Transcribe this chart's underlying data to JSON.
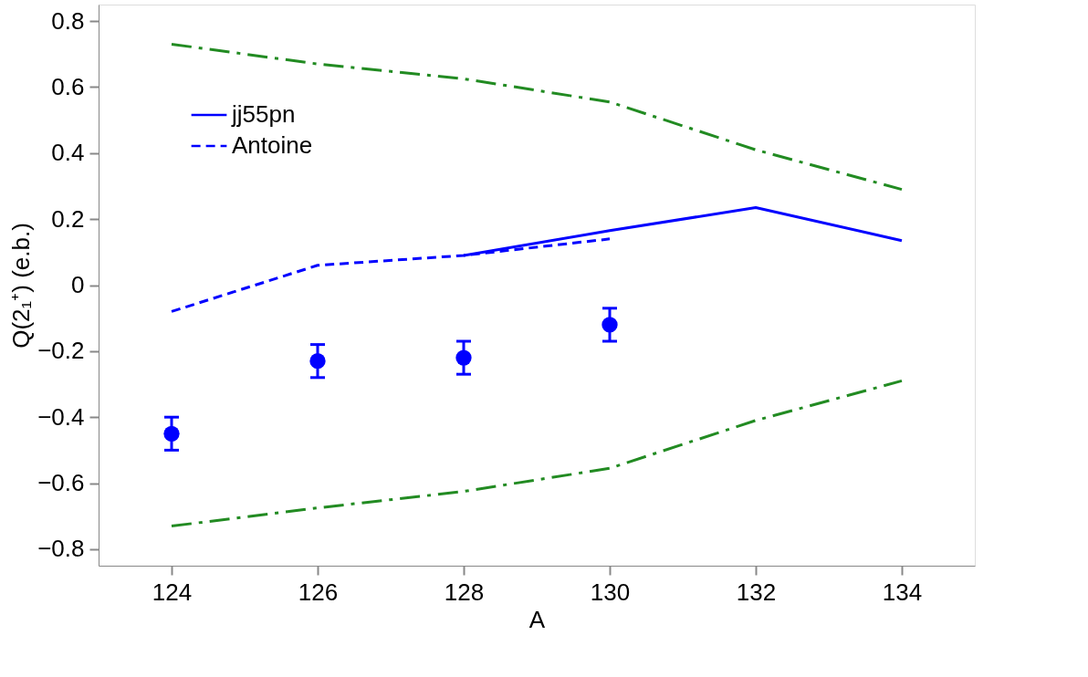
{
  "chart_data": {
    "type": "line",
    "xlabel": "A",
    "ylabel": "Q(2₁⁺) (e.b.)",
    "xlim": [
      123,
      135
    ],
    "xticks": [
      124,
      126,
      128,
      130,
      132,
      134
    ],
    "ylim": [
      -0.85,
      0.85
    ],
    "yticks": [
      -0.8,
      -0.6,
      -0.4,
      -0.2,
      0,
      0.2,
      0.4,
      0.6,
      0.8
    ],
    "grid": false,
    "legend": "top left",
    "series": [
      {
        "color": "#228b22",
        "line_style": "dashdot",
        "x": [
          124,
          126,
          128,
          130,
          132,
          134
        ],
        "values": [
          0.73,
          0.67,
          0.625,
          0.555,
          0.41,
          0.29
        ]
      },
      {
        "color": "#228b22",
        "line_style": "dashdot",
        "x": [
          124,
          126,
          128,
          130,
          132,
          134
        ],
        "values": [
          -0.73,
          -0.675,
          -0.625,
          -0.555,
          -0.41,
          -0.29
        ]
      },
      {
        "name": "jj55pn",
        "color": "#0000ff",
        "line_style": "solid",
        "x": [
          128,
          130,
          132,
          134
        ],
        "values": [
          0.09,
          0.165,
          0.235,
          0.135
        ]
      },
      {
        "name": "Antoine",
        "color": "#0000ff",
        "line_style": "dashed",
        "x": [
          124,
          126,
          128,
          130
        ],
        "values": [
          -0.08,
          0.06,
          0.09,
          0.14
        ]
      },
      {
        "type": "scatter",
        "color": "#0000ff",
        "marker": "circle",
        "x": [
          124,
          126,
          128,
          130
        ],
        "values": [
          -0.45,
          -0.23,
          -0.22,
          -0.12
        ],
        "errors": [
          0.05,
          0.05,
          0.05,
          0.05
        ]
      }
    ]
  }
}
